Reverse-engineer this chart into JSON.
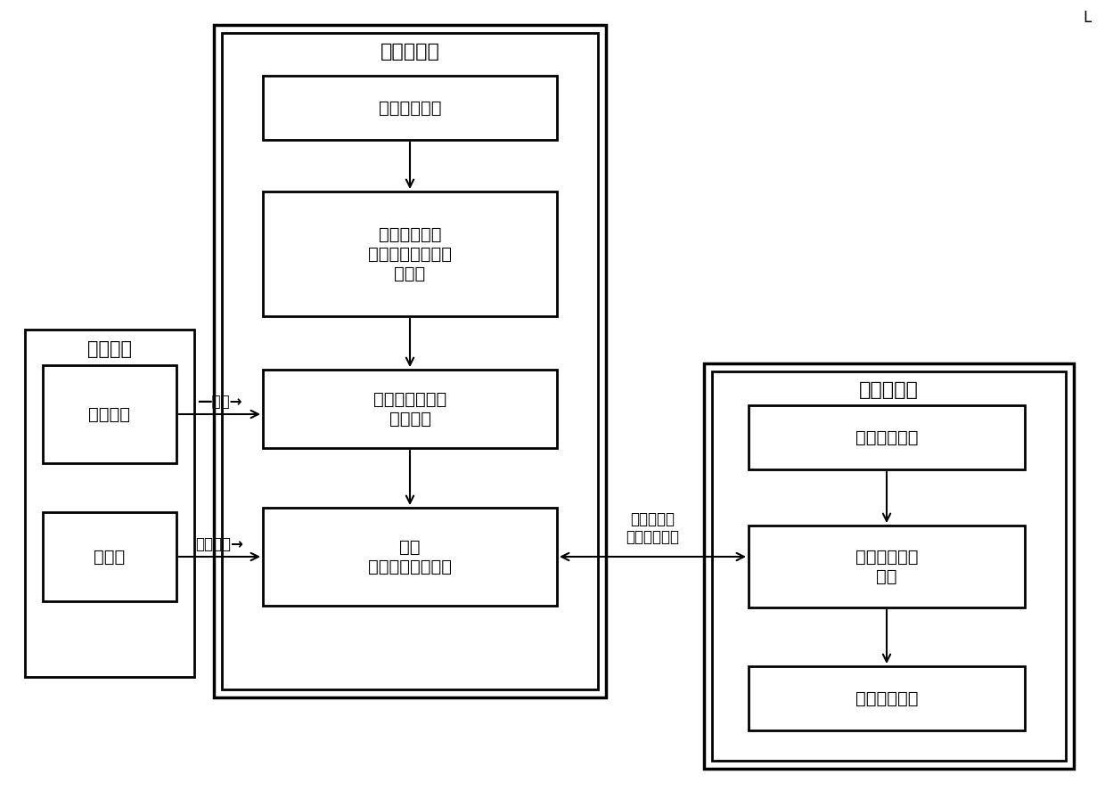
{
  "bg_color": "#ffffff",
  "factor_server_label": "因子服务器",
  "calc_server_label": "计算服务器",
  "trade_system_label": "交易系统",
  "boxes": {
    "load_config": "加载配置信息",
    "load_trade": "加载交易系统\n业务数据到内存的\n因子上",
    "subscribe": "向消息中心订阅\n业务数据",
    "update": "更新\n风控因子业务数据",
    "msg_center": "消息中心",
    "flow_table": "流水表",
    "calc_config": "配置信息加载",
    "risk_monitor": "风险监控计算\n服务",
    "calc_result": "计算结果推送"
  },
  "arrow_labels": {
    "subscribe_arrow": "—订阅→",
    "sync_arrow": "增量同步→",
    "calc_from_factor": "计算从因子\n获取业务数据"
  }
}
